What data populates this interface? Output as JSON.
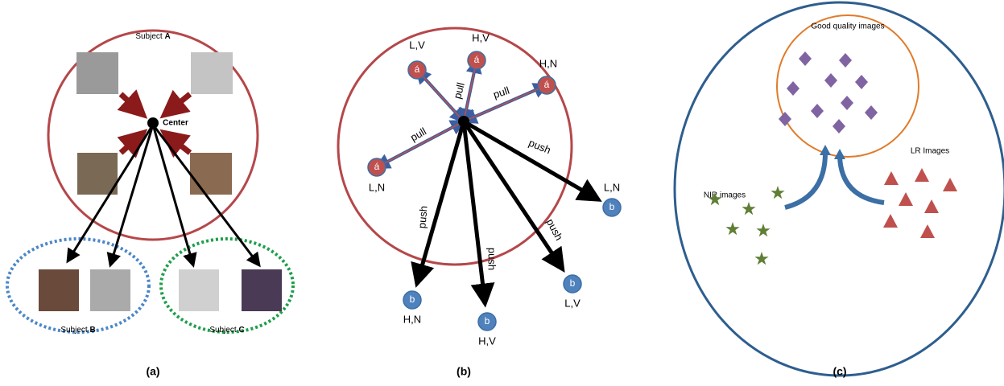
{
  "panels": [
    {
      "caption": "(a)",
      "center": "Center",
      "subjects": [
        {
          "label": "Subject",
          "id": "A"
        },
        {
          "label": "Subject",
          "id": "B"
        },
        {
          "label": "Subject",
          "id": "C"
        }
      ]
    },
    {
      "caption": "(b)",
      "anchor_nodes": [
        {
          "symbol": "á",
          "label": "L,V"
        },
        {
          "symbol": "á",
          "label": "H,V"
        },
        {
          "symbol": "á",
          "label": "H,N"
        },
        {
          "symbol": "á",
          "label": "L,N"
        }
      ],
      "negative_nodes": [
        {
          "symbol": "b",
          "label": "L,N"
        },
        {
          "symbol": "b",
          "label": "H,N"
        },
        {
          "symbol": "b",
          "label": "H,V"
        },
        {
          "symbol": "b",
          "label": "L,V"
        }
      ],
      "pull_labels": [
        "pull",
        "pull",
        "pull"
      ],
      "push_labels": [
        "push",
        "push",
        "push",
        "push"
      ]
    },
    {
      "caption": "(c)",
      "good_label": "Good quality images",
      "nir_label": "NIR images",
      "lr_label": "LR Images"
    }
  ]
}
